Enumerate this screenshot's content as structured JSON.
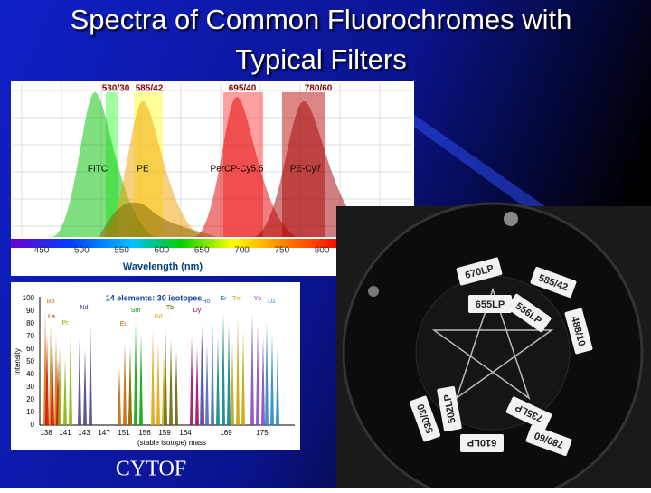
{
  "title": [
    "Spectra of Common Fluorochromes with",
    "Typical Filters"
  ],
  "caption": "CYTOF",
  "spectra": {
    "filters": [
      "530/30",
      "585/42",
      "695/40",
      "780/60"
    ],
    "dyes": [
      "FITC",
      "PE",
      "PerCP-Cy5.5",
      "PE-Cy7"
    ],
    "xticks": [
      "450",
      "500",
      "550",
      "600",
      "650",
      "700",
      "750",
      "800"
    ],
    "xlabel": "Wavelength (nm)"
  },
  "mass": {
    "title": "14 elements: 30 isotopes",
    "ylabel": "Intensity",
    "yticks": [
      "100",
      "90",
      "80",
      "70",
      "60",
      "50",
      "40",
      "30",
      "20",
      "10",
      "0"
    ],
    "xticks": [
      "138",
      "141",
      "143",
      "147",
      "151",
      "156",
      "159",
      "164",
      "169",
      "175"
    ],
    "xlabel": "(stable isotope) mass",
    "elements": [
      "Ba",
      "La",
      "Pr",
      "Nd",
      "Sm",
      "Eu",
      "Gd",
      "Tb",
      "Dy",
      "Ho",
      "Er",
      "Tm",
      "Yb",
      "Lu"
    ]
  },
  "wheel": {
    "labels": [
      "670LP",
      "585/42",
      "655LP",
      "556LP",
      "488/10",
      "530/30",
      "502LP",
      "610LP",
      "735LP",
      "780/60"
    ]
  }
}
